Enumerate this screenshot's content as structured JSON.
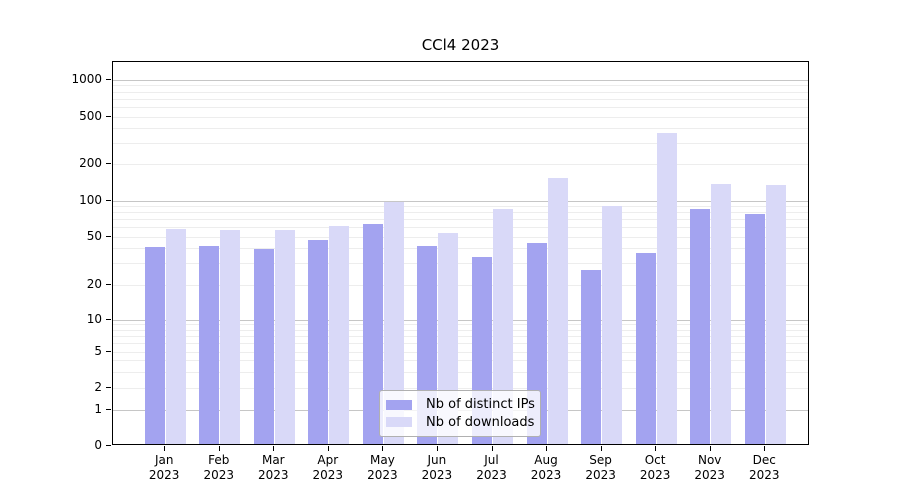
{
  "chart_data": {
    "type": "bar",
    "title": "CCl4 2023",
    "xlabel": "",
    "ylabel": "",
    "yscale": "symlog",
    "grid": true,
    "legend_position": "lower center",
    "y_ticks": [
      0,
      1,
      2,
      5,
      10,
      20,
      50,
      100,
      200,
      500,
      1000
    ],
    "ylim": [
      0,
      1400
    ],
    "categories": [
      "Jan",
      "Feb",
      "Mar",
      "Apr",
      "May",
      "Jun",
      "Jul",
      "Aug",
      "Sep",
      "Oct",
      "Nov",
      "Dec"
    ],
    "year_line": "2023",
    "series": [
      {
        "name": "Nb of distinct IPs",
        "color": "#a3a3f0",
        "values": [
          40,
          41,
          39,
          46,
          63,
          41,
          33,
          43,
          26,
          36,
          84,
          76
        ]
      },
      {
        "name": "Nb of downloads",
        "color": "#d9d9f8",
        "values": [
          57,
          56,
          56,
          60,
          96,
          53,
          84,
          150,
          88,
          360,
          135,
          132
        ]
      }
    ]
  }
}
